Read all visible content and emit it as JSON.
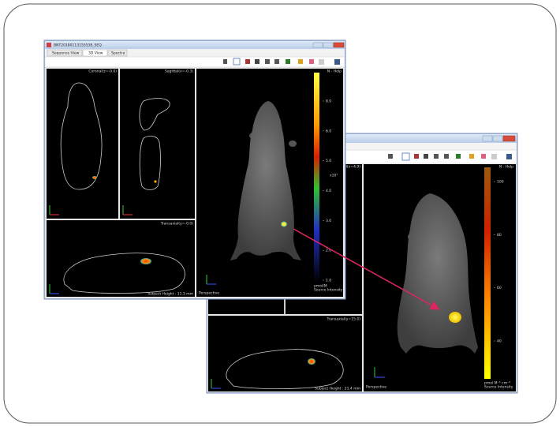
{
  "window1": {
    "title": "BNT20180113155538_SEQ",
    "tabs": [
      "Sequence View",
      "3D View",
      "Spectra"
    ],
    "coronal_label": "Coronal(z=-0.0)",
    "sagittal_label": "Sagittal(x=-0.3)",
    "transaxial_label": "Transaxial(y=-0.0)",
    "subject_height": "Subject Height : 11.3 mm",
    "view_label": "Perspective",
    "help": "N - Help",
    "colorbar": {
      "ticks": [
        "8.0",
        "6.0",
        "5.0",
        "4.0",
        "3.0",
        "2.0",
        "1.0"
      ],
      "multiplier": "x10⁷",
      "unit": "pmol/M",
      "label": "Source Intensity"
    }
  },
  "window2": {
    "sagittal_label": "Sagittal(x=4.9)",
    "transaxial_label": "Transaxial(y=15.0)",
    "subject_height": "Subject Height : 21.4 mm",
    "view_label": "Perspective",
    "help": "N - Help",
    "colorbar": {
      "ticks": [
        "100",
        "80",
        "60",
        "40"
      ],
      "unit": "pmol M⁻¹ cm⁻²",
      "label": "Source Intensity"
    }
  }
}
